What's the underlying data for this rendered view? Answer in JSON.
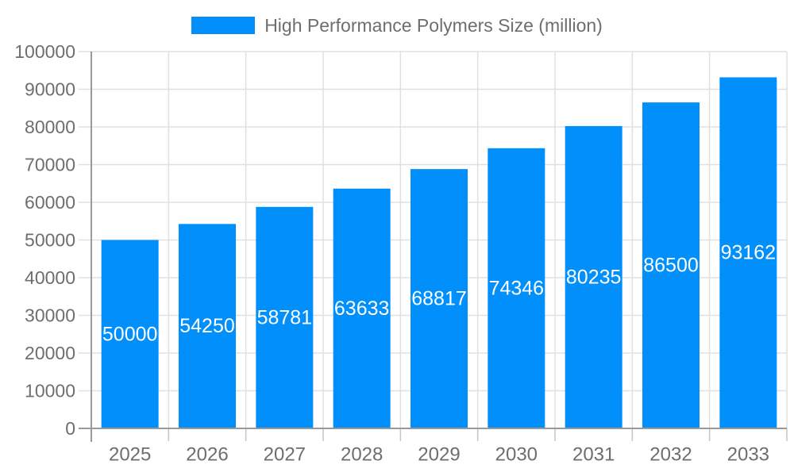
{
  "chart_data": {
    "type": "bar",
    "title": "High Performance Polymers Size (million)",
    "categories": [
      "2025",
      "2026",
      "2027",
      "2028",
      "2029",
      "2030",
      "2031",
      "2032",
      "2033"
    ],
    "series": [
      {
        "name": "High Performance Polymers Size (million)",
        "values": [
          50000,
          54250,
          58781,
          63633,
          68817,
          74346,
          80235,
          86500,
          93162
        ]
      }
    ],
    "data_labels": [
      "50000",
      "54250",
      "58781",
      "63633",
      "68817",
      "74346",
      "80235",
      "86500",
      "93162"
    ],
    "xlabel": "",
    "ylabel": "",
    "ylim": [
      0,
      100000
    ],
    "y_tick_step": 10000,
    "y_tick_labels": [
      "0",
      "10000",
      "20000",
      "30000",
      "40000",
      "50000",
      "60000",
      "70000",
      "80000",
      "90000",
      "100000"
    ],
    "grid": true,
    "legend_position": "top",
    "colors": {
      "bar": "#008FFB",
      "data_label_text": "#ffffff",
      "axis_label_text": "#6e6e6e",
      "gridline": "#e0e0e0",
      "axis_line": "#999999",
      "background": "#ffffff"
    }
  },
  "legend": {
    "label": "High Performance Polymers Size (million)"
  }
}
